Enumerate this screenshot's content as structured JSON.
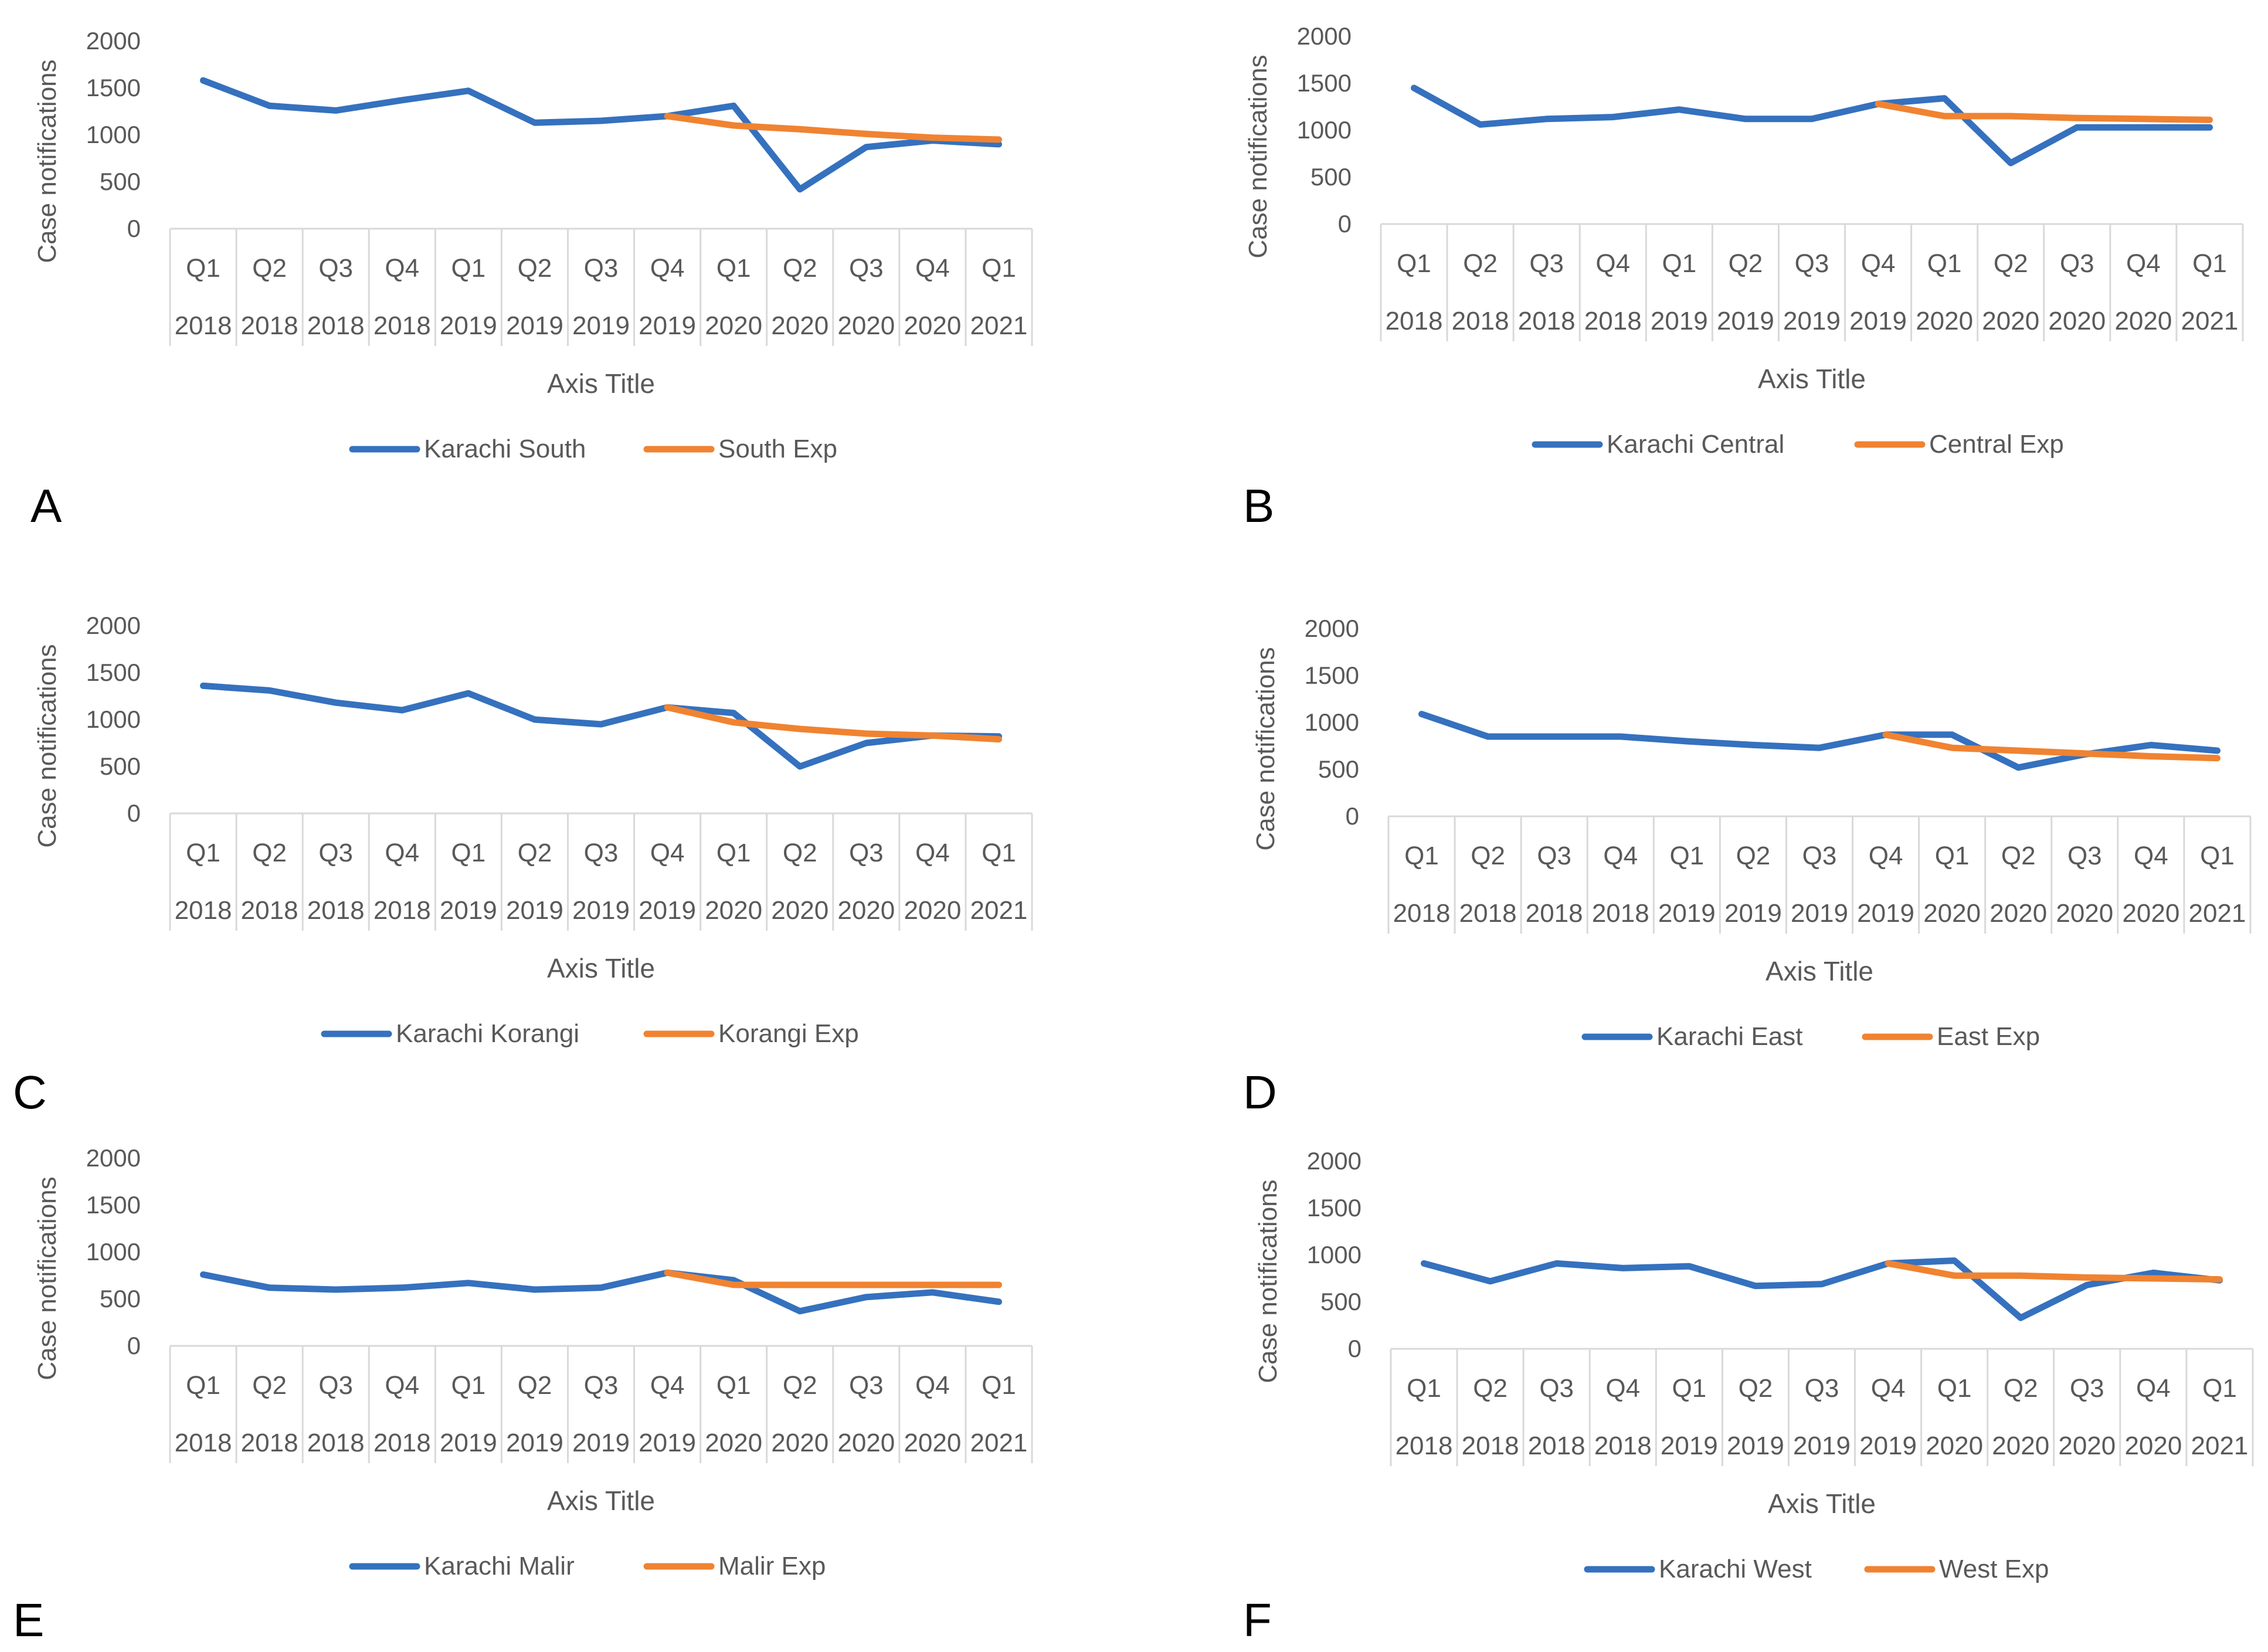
{
  "colors": {
    "observed": "#3571BE",
    "expected": "#F08331",
    "grid": "#d9d9d9",
    "text": "#595959"
  },
  "chart_data": [
    {
      "panel": "A",
      "type": "line",
      "ylabel": "Case notifications",
      "xlabel": "Axis Title",
      "ylim": [
        0,
        2000
      ],
      "yticks": [
        "0",
        "500",
        "1000",
        "1500",
        "2000"
      ],
      "quarters": [
        "Q1",
        "Q2",
        "Q3",
        "Q4",
        "Q1",
        "Q2",
        "Q3",
        "Q4",
        "Q1",
        "Q2",
        "Q3",
        "Q4",
        "Q1"
      ],
      "years": [
        "2018",
        "2018",
        "2018",
        "2018",
        "2019",
        "2019",
        "2019",
        "2019",
        "2020",
        "2020",
        "2020",
        "2020",
        "2021"
      ],
      "series": [
        {
          "name": "Karachi South",
          "color": "observed",
          "start": 0,
          "values": [
            1580,
            1310,
            1260,
            1370,
            1470,
            1130,
            1150,
            1200,
            1310,
            420,
            870,
            940,
            900
          ]
        },
        {
          "name": "South Exp",
          "color": "expected",
          "start": 7,
          "values": [
            1200,
            1100,
            1060,
            1010,
            970,
            950
          ]
        }
      ]
    },
    {
      "panel": "B",
      "type": "line",
      "ylabel": "Case notifications",
      "xlabel": "Axis Title",
      "ylim": [
        0,
        2000
      ],
      "yticks": [
        "0",
        "500",
        "1000",
        "1500",
        "2000"
      ],
      "quarters": [
        "Q1",
        "Q2",
        "Q3",
        "Q4",
        "Q1",
        "Q2",
        "Q3",
        "Q4",
        "Q1",
        "Q2",
        "Q3",
        "Q4",
        "Q1"
      ],
      "years": [
        "2018",
        "2018",
        "2018",
        "2018",
        "2019",
        "2019",
        "2019",
        "2019",
        "2020",
        "2020",
        "2020",
        "2020",
        "2021"
      ],
      "series": [
        {
          "name": "Karachi Central",
          "color": "observed",
          "start": 0,
          "values": [
            1450,
            1060,
            1120,
            1140,
            1220,
            1120,
            1120,
            1280,
            1340,
            650,
            1030,
            1030,
            1030
          ]
        },
        {
          "name": "Central Exp",
          "color": "expected",
          "start": 7,
          "values": [
            1280,
            1150,
            1150,
            1130,
            1120,
            1110
          ]
        }
      ]
    },
    {
      "panel": "C",
      "type": "line",
      "ylabel": "Case notifications",
      "xlabel": "Axis Title",
      "ylim": [
        0,
        2000
      ],
      "yticks": [
        "0",
        "500",
        "1000",
        "1500",
        "2000"
      ],
      "quarters": [
        "Q1",
        "Q2",
        "Q3",
        "Q4",
        "Q1",
        "Q2",
        "Q3",
        "Q4",
        "Q1",
        "Q2",
        "Q3",
        "Q4",
        "Q1"
      ],
      "years": [
        "2018",
        "2018",
        "2018",
        "2018",
        "2019",
        "2019",
        "2019",
        "2019",
        "2020",
        "2020",
        "2020",
        "2020",
        "2021"
      ],
      "series": [
        {
          "name": "Karachi Korangi",
          "color": "observed",
          "start": 0,
          "values": [
            1360,
            1310,
            1180,
            1100,
            1280,
            1000,
            950,
            1130,
            1070,
            500,
            750,
            830,
            820
          ]
        },
        {
          "name": "Korangi Exp",
          "color": "expected",
          "start": 7,
          "values": [
            1130,
            970,
            900,
            850,
            830,
            790
          ]
        }
      ]
    },
    {
      "panel": "D",
      "type": "line",
      "ylabel": "Case notifications",
      "xlabel": "Axis Title",
      "ylim": [
        0,
        2000
      ],
      "yticks": [
        "0",
        "500",
        "1000",
        "1500",
        "2000"
      ],
      "quarters": [
        "Q1",
        "Q2",
        "Q3",
        "Q4",
        "Q1",
        "Q2",
        "Q3",
        "Q4",
        "Q1",
        "Q2",
        "Q3",
        "Q4",
        "Q1"
      ],
      "years": [
        "2018",
        "2018",
        "2018",
        "2018",
        "2019",
        "2019",
        "2019",
        "2019",
        "2020",
        "2020",
        "2020",
        "2020",
        "2021"
      ],
      "series": [
        {
          "name": "Karachi East",
          "color": "observed",
          "start": 0,
          "values": [
            1090,
            850,
            850,
            850,
            800,
            760,
            730,
            870,
            870,
            520,
            660,
            760,
            700
          ]
        },
        {
          "name": "East Exp",
          "color": "expected",
          "start": 7,
          "values": [
            870,
            730,
            700,
            670,
            640,
            620
          ]
        }
      ]
    },
    {
      "panel": "E",
      "type": "line",
      "ylabel": "Case notifications",
      "xlabel": "Axis Title",
      "ylim": [
        0,
        2000
      ],
      "yticks": [
        "0",
        "500",
        "1000",
        "1500",
        "2000"
      ],
      "quarters": [
        "Q1",
        "Q2",
        "Q3",
        "Q4",
        "Q1",
        "Q2",
        "Q3",
        "Q4",
        "Q1",
        "Q2",
        "Q3",
        "Q4",
        "Q1"
      ],
      "years": [
        "2018",
        "2018",
        "2018",
        "2018",
        "2019",
        "2019",
        "2019",
        "2019",
        "2020",
        "2020",
        "2020",
        "2020",
        "2021"
      ],
      "series": [
        {
          "name": "Karachi Malir",
          "color": "observed",
          "start": 0,
          "values": [
            760,
            620,
            600,
            620,
            670,
            600,
            620,
            780,
            700,
            370,
            520,
            570,
            470
          ]
        },
        {
          "name": "Malir Exp",
          "color": "expected",
          "start": 7,
          "values": [
            780,
            650,
            650,
            650,
            650,
            650
          ]
        }
      ]
    },
    {
      "panel": "F",
      "type": "line",
      "ylabel": "Case notifications",
      "xlabel": "Axis Title",
      "ylim": [
        0,
        2000
      ],
      "yticks": [
        "0",
        "500",
        "1000",
        "1500",
        "2000"
      ],
      "quarters": [
        "Q1",
        "Q2",
        "Q3",
        "Q4",
        "Q1",
        "Q2",
        "Q3",
        "Q4",
        "Q1",
        "Q2",
        "Q3",
        "Q4",
        "Q1"
      ],
      "years": [
        "2018",
        "2018",
        "2018",
        "2018",
        "2019",
        "2019",
        "2019",
        "2019",
        "2020",
        "2020",
        "2020",
        "2020",
        "2021"
      ],
      "series": [
        {
          "name": "Karachi West",
          "color": "observed",
          "start": 0,
          "values": [
            910,
            720,
            910,
            860,
            880,
            670,
            690,
            910,
            940,
            330,
            680,
            810,
            730
          ]
        },
        {
          "name": "West Exp",
          "color": "expected",
          "start": 7,
          "values": [
            910,
            780,
            780,
            760,
            750,
            740
          ]
        }
      ]
    }
  ]
}
